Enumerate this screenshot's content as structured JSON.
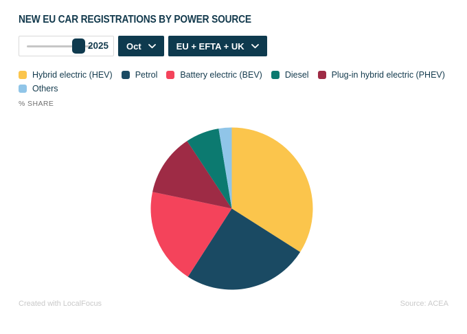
{
  "header": {
    "title": "NEW EU CAR REGISTRATIONS BY POWER SOURCE"
  },
  "controls": {
    "year_slider": {
      "value": "2025"
    },
    "month_dropdown": {
      "label": "Oct"
    },
    "region_dropdown": {
      "label": "EU + EFTA + UK"
    }
  },
  "chart_data": {
    "type": "pie",
    "title": "NEW EU CAR REGISTRATIONS BY POWER SOURCE",
    "unit_label": "% SHARE",
    "values_are": "percent share, estimated from slice angles (no data labels shown)",
    "start_angle_deg": 0,
    "direction": "clockwise",
    "slices": [
      {
        "label": "Hybrid electric (HEV)",
        "value": 34.0,
        "color": "#FBC54C"
      },
      {
        "label": "Petrol",
        "value": 25.1,
        "color": "#1A4A63"
      },
      {
        "label": "Battery electric (BEV)",
        "value": 19.2,
        "color": "#F4435B"
      },
      {
        "label": "Diesel",
        "value": 6.7,
        "color": "#0C7A70"
      },
      {
        "label": "Plug-in hybrid electric (PHEV)",
        "value": 12.4,
        "color": "#9E2B45"
      },
      {
        "label": "Others",
        "value": 2.6,
        "color": "#90C5E8"
      }
    ],
    "draw_order": [
      0,
      1,
      2,
      4,
      3,
      5
    ],
    "legend_position": "top-left, two rows"
  },
  "footer": {
    "credit": "Created with LocalFocus",
    "source": "Source: ACEA"
  }
}
